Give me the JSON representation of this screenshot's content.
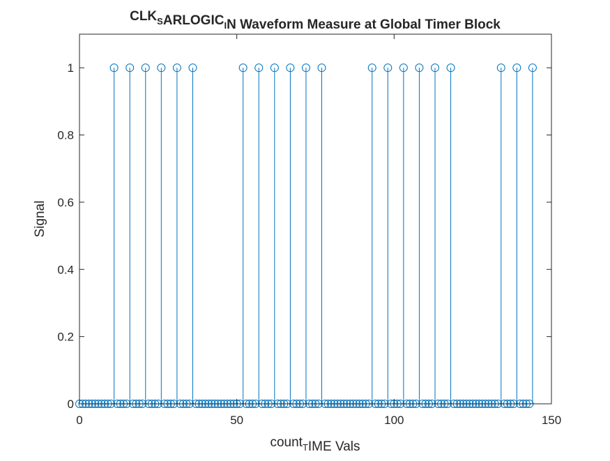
{
  "chart_data": {
    "type": "stem",
    "title": {
      "parts": [
        {
          "text": "CLK",
          "sub": false
        },
        {
          "text": "S",
          "sub": true
        },
        {
          "text": "ARLOGIC",
          "sub": false
        },
        {
          "text": "I",
          "sub": true
        },
        {
          "text": "N Waveform Measure at Global Timer Block",
          "sub": false
        }
      ]
    },
    "xlabel": {
      "parts": [
        {
          "text": "count",
          "sub": false
        },
        {
          "text": "T",
          "sub": true
        },
        {
          "text": "IME Vals",
          "sub": false
        }
      ]
    },
    "ylabel": "Signal",
    "xlim": [
      0,
      150
    ],
    "ylim": [
      0,
      1.1
    ],
    "xticks": [
      0,
      50,
      100,
      150
    ],
    "yticks": [
      0,
      0.2,
      0.4,
      0.6,
      0.8,
      1
    ],
    "xtick_labels": [
      "0",
      "50",
      "100",
      "150"
    ],
    "ytick_labels": [
      "0",
      "0.2",
      "0.4",
      "0.6",
      "0.8",
      "1"
    ],
    "series_color": "#0072BD",
    "axis_color": "#262626",
    "grid": false,
    "x": [
      0,
      1,
      2,
      3,
      4,
      5,
      6,
      7,
      8,
      9,
      10,
      11,
      12,
      13,
      14,
      15,
      16,
      17,
      18,
      19,
      20,
      21,
      22,
      23,
      24,
      25,
      26,
      27,
      28,
      29,
      30,
      31,
      32,
      33,
      34,
      35,
      36,
      37,
      38,
      39,
      40,
      41,
      42,
      43,
      44,
      45,
      46,
      47,
      48,
      49,
      50,
      51,
      52,
      53,
      54,
      55,
      56,
      57,
      58,
      59,
      60,
      61,
      62,
      63,
      64,
      65,
      66,
      67,
      68,
      69,
      70,
      71,
      72,
      73,
      74,
      75,
      76,
      77,
      78,
      79,
      80,
      81,
      82,
      83,
      84,
      85,
      86,
      87,
      88,
      89,
      90,
      91,
      92,
      93,
      94,
      95,
      96,
      97,
      98,
      99,
      100,
      101,
      102,
      103,
      104,
      105,
      106,
      107,
      108,
      109,
      110,
      111,
      112,
      113,
      114,
      115,
      116,
      117,
      118,
      119,
      120,
      121,
      122,
      123,
      124,
      125,
      126,
      127,
      128,
      129,
      130,
      131,
      132,
      133,
      134,
      135,
      136,
      137,
      138,
      139,
      140,
      141,
      142,
      143,
      144
    ],
    "y": [
      0,
      0,
      0,
      0,
      0,
      0,
      0,
      0,
      0,
      0,
      0,
      1,
      0,
      0,
      0,
      0,
      1,
      0,
      0,
      0,
      0,
      1,
      0,
      0,
      0,
      0,
      1,
      0,
      0,
      0,
      0,
      1,
      0,
      0,
      0,
      0,
      1,
      0,
      0,
      0,
      0,
      0,
      0,
      0,
      0,
      0,
      0,
      0,
      0,
      0,
      0,
      0,
      1,
      0,
      0,
      0,
      0,
      1,
      0,
      0,
      0,
      0,
      1,
      0,
      0,
      0,
      0,
      1,
      0,
      0,
      0,
      0,
      1,
      0,
      0,
      0,
      0,
      1,
      0,
      0,
      0,
      0,
      0,
      0,
      0,
      0,
      0,
      0,
      0,
      0,
      0,
      0,
      0,
      1,
      0,
      0,
      0,
      0,
      1,
      0,
      0,
      0,
      0,
      1,
      0,
      0,
      0,
      0,
      1,
      0,
      0,
      0,
      0,
      1,
      0,
      0,
      0,
      0,
      1,
      0,
      0,
      0,
      0,
      0,
      0,
      0,
      0,
      0,
      0,
      0,
      0,
      0,
      0,
      0,
      1,
      0,
      0,
      0,
      0,
      1,
      0,
      0,
      0,
      0,
      1
    ]
  }
}
